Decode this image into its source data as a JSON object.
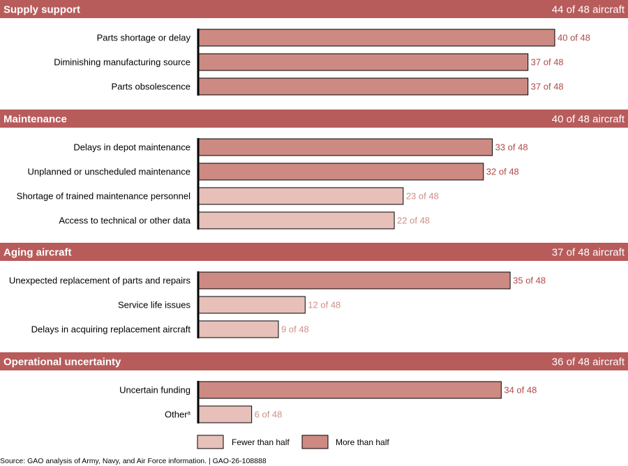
{
  "chart_data": {
    "type": "bar",
    "orientation": "horizontal",
    "x_max": 48,
    "value_suffix": " of 48",
    "groups": [
      {
        "title": "Supply support",
        "count": "44 of 48 aircraft",
        "bars": [
          {
            "label": "Parts shortage or delay",
            "value": 40
          },
          {
            "label": "Diminishing manufacturing source",
            "value": 37
          },
          {
            "label": "Parts obsolescence",
            "value": 37
          }
        ]
      },
      {
        "title": "Maintenance",
        "count": "40 of 48 aircraft",
        "bars": [
          {
            "label": "Delays in depot maintenance",
            "value": 33
          },
          {
            "label": "Unplanned or unscheduled maintenance",
            "value": 32
          },
          {
            "label": "Shortage of trained maintenance personnel",
            "value": 23
          },
          {
            "label": "Access to technical or other data",
            "value": 22
          }
        ]
      },
      {
        "title": "Aging aircraft",
        "count": "37 of 48 aircraft",
        "bars": [
          {
            "label": "Unexpected replacement of parts and repairs",
            "value": 35
          },
          {
            "label": "Service life issues",
            "value": 12
          },
          {
            "label": "Delays in acquiring replacement aircraft",
            "value": 9
          }
        ]
      },
      {
        "title": "Operational uncertainty",
        "count": "36 of 48 aircraft",
        "bars": [
          {
            "label": "Uncertain funding",
            "value": 34
          },
          {
            "label": "Other",
            "label_superscript": "a",
            "value": 6
          }
        ]
      }
    ],
    "legend": [
      {
        "label": "Fewer than half",
        "color": "#e6c0b9"
      },
      {
        "label": "More than half",
        "color": "#cd8a83"
      }
    ]
  },
  "colors": {
    "header_band": "#b75b5b",
    "bar_more_than_half": "#cd8a83",
    "bar_fewer_than_half": "#e6c0b9",
    "value_more_than_half": "#b04a4a",
    "value_fewer_than_half": "#d08f86"
  },
  "source": "Source: GAO analysis of Army, Navy, and Air Force information.  |  GAO-26-108888"
}
